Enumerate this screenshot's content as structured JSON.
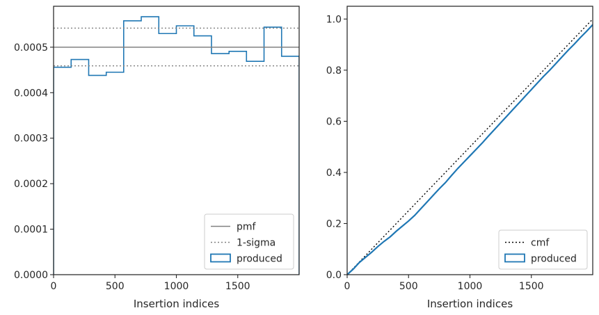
{
  "chart_data": [
    {
      "type": "histogram",
      "xlabel": "Insertion indices",
      "ylabel": "",
      "xlim": [
        0,
        2000
      ],
      "ylim": [
        0,
        0.00059
      ],
      "xticks": [
        0,
        500,
        1000,
        1500
      ],
      "xtick_labels": [
        "0",
        "500",
        "1000",
        "1500"
      ],
      "yticks": [
        0,
        0.0001,
        0.0002,
        0.0003,
        0.0004,
        0.0005
      ],
      "ytick_labels": [
        "0.0000",
        "0.0001",
        "0.0002",
        "0.0003",
        "0.0004",
        "0.0005"
      ],
      "grid": false,
      "legend_position": "lower-right",
      "series": [
        {
          "name": "produced",
          "kind": "step-histogram",
          "color": "#1f77b4",
          "bin_edges": [
            0,
            143,
            286,
            429,
            571,
            714,
            857,
            1000,
            1143,
            1286,
            1429,
            1571,
            1714,
            1857,
            2000
          ],
          "values": [
            0.000456,
            0.000473,
            0.000438,
            0.000445,
            0.000558,
            0.000567,
            0.00053,
            0.000547,
            0.000525,
            0.000486,
            0.000491,
            0.000469,
            0.000544,
            0.00048
          ]
        },
        {
          "name": "pmf",
          "kind": "hline",
          "y": 0.0005,
          "color": "#808080",
          "linestyle": "solid"
        },
        {
          "name": "1-sigma",
          "kind": "hline",
          "y": [
            0.000459,
            0.000542
          ],
          "color": "#808080",
          "linestyle": "dotted"
        }
      ],
      "legend": [
        "pmf",
        "1-sigma",
        "produced"
      ]
    },
    {
      "type": "line",
      "xlabel": "Insertion indices",
      "ylabel": "",
      "xlim": [
        0,
        2000
      ],
      "ylim": [
        0,
        1.05
      ],
      "xticks": [
        0,
        500,
        1000,
        1500
      ],
      "xtick_labels": [
        "0",
        "500",
        "1000",
        "1500"
      ],
      "yticks": [
        0,
        0.2,
        0.4,
        0.6,
        0.8,
        1.0
      ],
      "ytick_labels": [
        "0.0",
        "0.2",
        "0.4",
        "0.6",
        "0.8",
        "1.0"
      ],
      "grid": false,
      "legend_position": "lower-right",
      "series": [
        {
          "name": "cmf",
          "color": "#000000",
          "linestyle": "dotted",
          "x": [
            0,
            2000
          ],
          "y": [
            0,
            1.0
          ]
        },
        {
          "name": "produced",
          "color": "#1f77b4",
          "linestyle": "solid",
          "x": [
            0,
            50,
            100,
            150,
            200,
            250,
            300,
            350,
            400,
            450,
            500,
            550,
            600,
            650,
            700,
            750,
            800,
            850,
            900,
            950,
            1000,
            1050,
            1100,
            1150,
            1200,
            1250,
            1300,
            1350,
            1400,
            1450,
            1500,
            1550,
            1600,
            1650,
            1700,
            1750,
            1800,
            1850,
            1900,
            1950,
            2000
          ],
          "y": [
            0,
            0.022,
            0.048,
            0.068,
            0.088,
            0.11,
            0.13,
            0.148,
            0.17,
            0.19,
            0.21,
            0.232,
            0.258,
            0.284,
            0.31,
            0.336,
            0.36,
            0.388,
            0.415,
            0.44,
            0.465,
            0.49,
            0.515,
            0.542,
            0.568,
            0.594,
            0.62,
            0.646,
            0.672,
            0.698,
            0.724,
            0.75,
            0.776,
            0.8,
            0.826,
            0.852,
            0.878,
            0.902,
            0.928,
            0.952,
            0.978
          ]
        }
      ],
      "legend": [
        "cmf",
        "produced"
      ]
    }
  ]
}
